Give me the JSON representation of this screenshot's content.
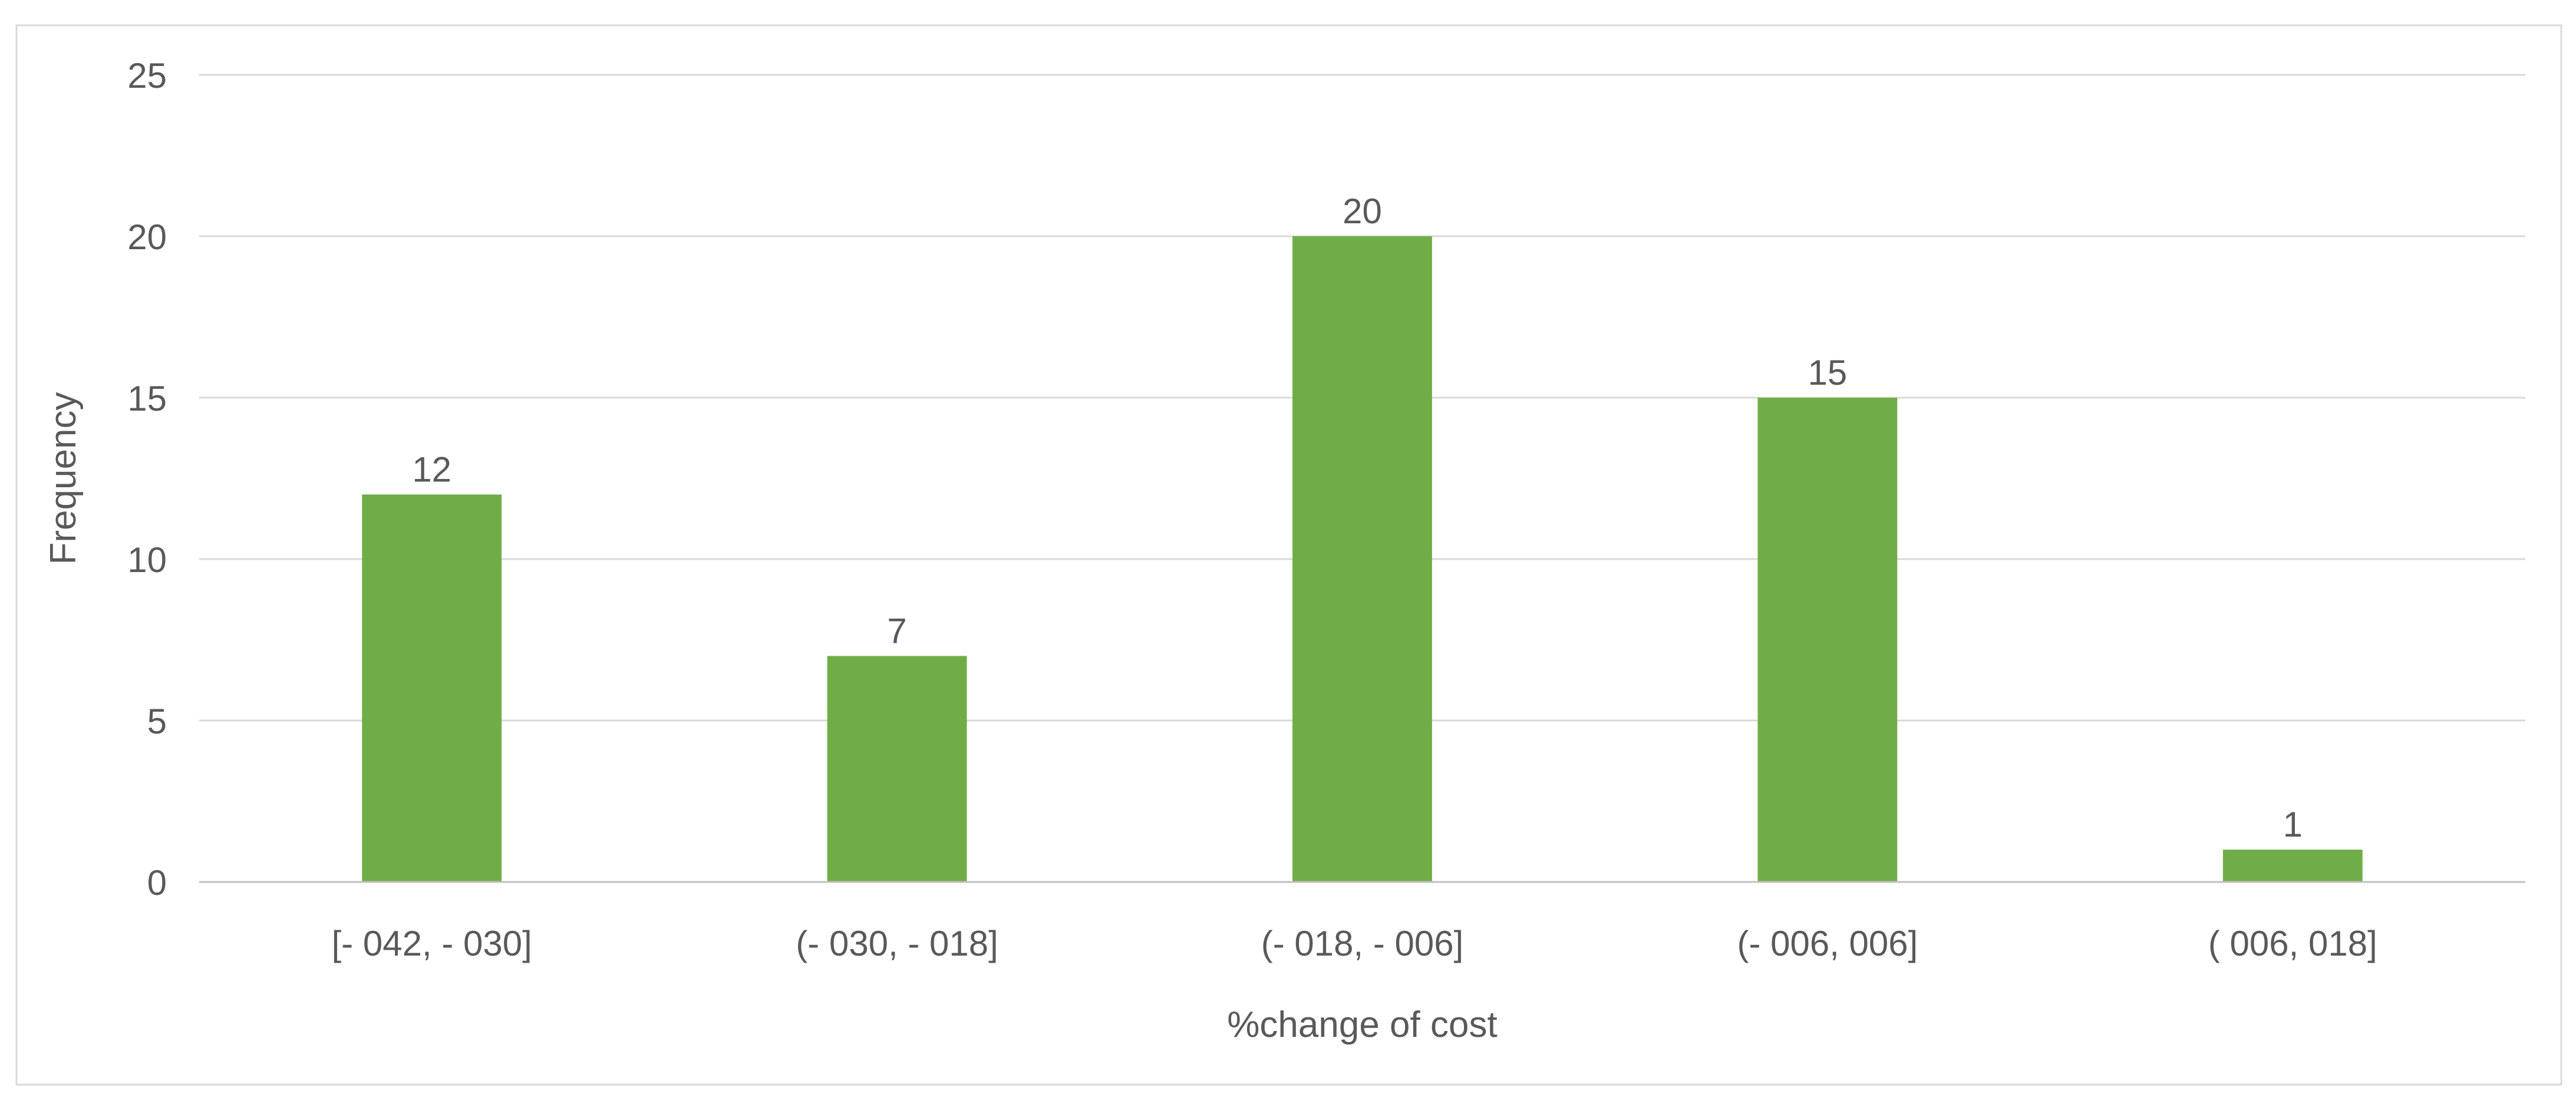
{
  "chart_data": {
    "type": "bar",
    "categories": [
      "[- 042, - 030]",
      "(- 030, - 018]",
      "(- 018, - 006]",
      "(- 006,  006]",
      "( 006,  018]"
    ],
    "values": [
      12,
      7,
      20,
      15,
      1
    ],
    "xlabel": "%change of cost",
    "ylabel": "Frequency",
    "ylim": [
      0,
      25
    ],
    "yticks": [
      0,
      5,
      10,
      15,
      20,
      25
    ],
    "grid": true,
    "data_labels": true,
    "bar_color": "#70AD47",
    "legend": "none"
  }
}
